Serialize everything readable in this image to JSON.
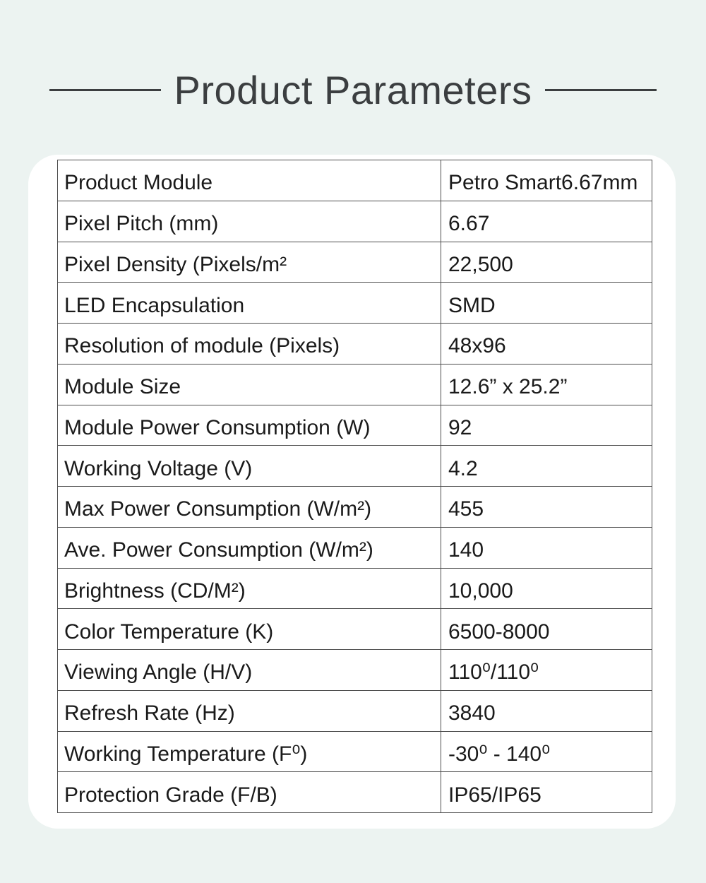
{
  "page": {
    "background_color": "#ecf3f1",
    "card_color": "#ffffff"
  },
  "header": {
    "title": "Product Parameters",
    "title_color": "#3b3e40"
  },
  "table": {
    "border_color": "#4d4d4d",
    "text_color": "#1a1a1a",
    "columns": [
      "parameter",
      "value"
    ],
    "rows": [
      {
        "label": "Product Module",
        "value": "Petro Smart6.67mm"
      },
      {
        "label": "Pixel Pitch (mm)",
        "value": "6.67"
      },
      {
        "label": "Pixel Density (Pixels/m²",
        "value": "22,500"
      },
      {
        "label": "LED Encapsulation",
        "value": "SMD"
      },
      {
        "label": "Resolution of module (Pixels)",
        "value": "48x96"
      },
      {
        "label": "Module Size",
        "value": "12.6” x 25.2”"
      },
      {
        "label": "Module Power Consumption (W)",
        "value": "92"
      },
      {
        "label": "Working Voltage (V)",
        "value": "4.2"
      },
      {
        "label": "Max Power Consumption (W/m²)",
        "value": "455"
      },
      {
        "label": "Ave. Power Consumption (W/m²)",
        "value": "140"
      },
      {
        "label": "Brightness (CD/M²)",
        "value": "10,000"
      },
      {
        "label": "Color Temperature (K)",
        "value": "6500-8000"
      },
      {
        "label": "Viewing Angle (H/V)",
        "value": "110⁰/110⁰"
      },
      {
        "label": "Refresh Rate (Hz)",
        "value": "3840"
      },
      {
        "label": "Working Temperature (F⁰)",
        "value": "-30⁰ - 140⁰"
      },
      {
        "label": "Protection Grade (F/B)",
        "value": "IP65/IP65"
      }
    ]
  }
}
